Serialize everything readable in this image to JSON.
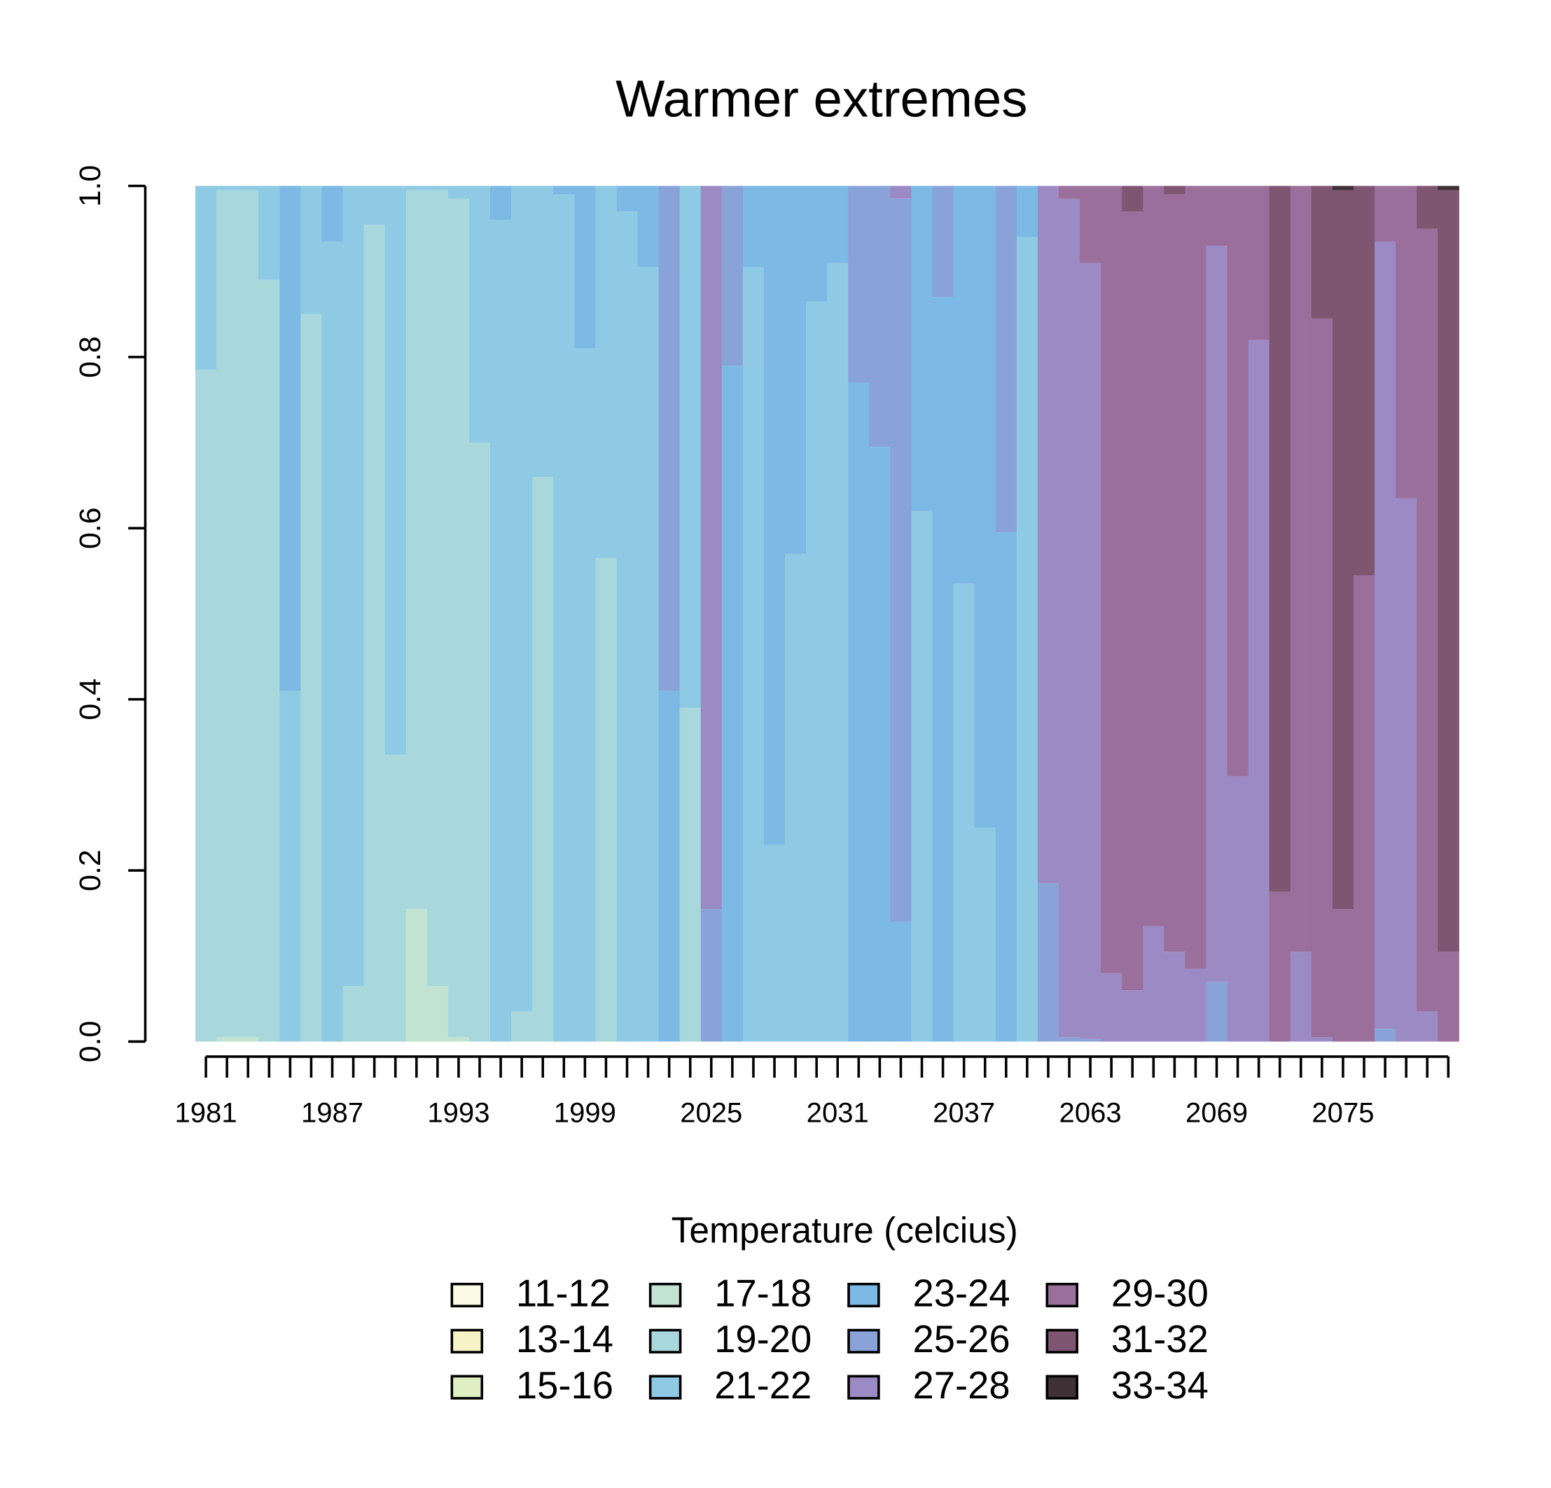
{
  "chart_data": {
    "type": "stacked-bar",
    "title": "Warmer extremes",
    "legend_title": "Temperature (celcius)",
    "categories": [
      "1981",
      null,
      null,
      null,
      null,
      null,
      "1987",
      null,
      null,
      null,
      null,
      null,
      "1993",
      null,
      null,
      null,
      null,
      null,
      "1999",
      null,
      null,
      null,
      null,
      null,
      "2025",
      null,
      null,
      null,
      null,
      null,
      "2031",
      null,
      null,
      null,
      null,
      null,
      "2037",
      null,
      null,
      null,
      null,
      null,
      "2063",
      null,
      null,
      null,
      null,
      null,
      "2069",
      null,
      null,
      null,
      null,
      null,
      "2075",
      null,
      null,
      null,
      null,
      null
    ],
    "ylim": [
      0,
      1
    ],
    "yticks": [
      0,
      0.2,
      0.4,
      0.6,
      0.8,
      1
    ],
    "yticklabels": [
      "0.0",
      "0.2",
      "0.4",
      "0.6",
      "0.8",
      "1.0"
    ],
    "series": [
      {
        "name": "11-12",
        "color": "#fbfae4",
        "values": [
          0,
          0,
          0,
          0,
          0,
          0,
          0,
          0,
          0,
          0,
          0,
          0,
          0,
          0,
          0,
          0,
          0,
          0,
          0,
          0,
          0,
          0,
          0,
          0,
          0,
          0,
          0,
          0,
          0,
          0,
          0,
          0,
          0,
          0,
          0,
          0,
          0,
          0,
          0,
          0,
          0,
          0,
          0,
          0,
          0,
          0,
          0,
          0,
          0,
          0,
          0,
          0,
          0,
          0,
          0,
          0,
          0,
          0,
          0,
          0
        ]
      },
      {
        "name": "13-14",
        "color": "#f6f3c6",
        "values": [
          0,
          0,
          0,
          0,
          0,
          0,
          0,
          0,
          0,
          0,
          0,
          0,
          0,
          0,
          0,
          0,
          0,
          0,
          0,
          0,
          0,
          0,
          0,
          0,
          0,
          0,
          0,
          0,
          0,
          0,
          0,
          0,
          0,
          0,
          0,
          0,
          0,
          0,
          0,
          0,
          0,
          0,
          0,
          0,
          0,
          0,
          0,
          0,
          0,
          0,
          0,
          0,
          0,
          0,
          0,
          0,
          0,
          0,
          0,
          0
        ]
      },
      {
        "name": "15-16",
        "color": "#e0eec4",
        "values": [
          0,
          0,
          0,
          0,
          0,
          0,
          0,
          0,
          0,
          0,
          0,
          0,
          0,
          0,
          0,
          0,
          0,
          0,
          0,
          0,
          0,
          0,
          0,
          0,
          0,
          0,
          0,
          0,
          0,
          0,
          0,
          0,
          0,
          0,
          0,
          0,
          0,
          0,
          0,
          0,
          0,
          0,
          0,
          0,
          0,
          0,
          0,
          0,
          0,
          0,
          0,
          0,
          0,
          0,
          0,
          0,
          0,
          0,
          0,
          0
        ]
      },
      {
        "name": "17-18",
        "color": "#c2e3d2",
        "values": [
          0,
          0.005,
          0.005,
          0,
          0,
          0,
          0,
          0,
          0,
          0,
          0.155,
          0.065,
          0.005,
          0,
          0,
          0,
          0,
          0,
          0,
          0,
          0,
          0,
          0,
          0,
          0,
          0,
          0,
          0,
          0,
          0,
          0,
          0,
          0,
          0,
          0,
          0,
          0,
          0,
          0,
          0,
          0,
          0,
          0,
          0,
          0,
          0,
          0,
          0,
          0,
          0,
          0,
          0,
          0,
          0,
          0,
          0,
          0,
          0,
          0,
          0
        ]
      },
      {
        "name": "19-20",
        "color": "#a9d8dc",
        "values": [
          0.785,
          0.99,
          0.99,
          0.89,
          0,
          0.85,
          0,
          0.065,
          0.955,
          0.335,
          0.84,
          0.93,
          0.98,
          0.7,
          0,
          0.035,
          0.66,
          0,
          0,
          0.565,
          0,
          0,
          0,
          0.39,
          0,
          0,
          0,
          0,
          0,
          0,
          0,
          0,
          0,
          0,
          0,
          0,
          0,
          0,
          0,
          0,
          0,
          0,
          0,
          0,
          0,
          0,
          0,
          0,
          0,
          0,
          0,
          0,
          0,
          0,
          0,
          0,
          0,
          0,
          0,
          0
        ]
      },
      {
        "name": "21-22",
        "color": "#8ecae4",
        "values": [
          0.215,
          0.005,
          0.005,
          0.11,
          0.41,
          0.15,
          0.935,
          0.935,
          0.045,
          0.665,
          0.005,
          0.005,
          0.015,
          0.3,
          0.96,
          0.965,
          0.34,
          0.99,
          0.81,
          0.435,
          0.97,
          0.905,
          0,
          0.61,
          0,
          0,
          0.905,
          0.23,
          0.57,
          0.865,
          0.91,
          0,
          0,
          0,
          0.62,
          0,
          0.535,
          0.25,
          0,
          0.94,
          0,
          0,
          0,
          0,
          0,
          0,
          0,
          0,
          0,
          0,
          0,
          0,
          0,
          0,
          0,
          0,
          0,
          0,
          0,
          0
        ]
      },
      {
        "name": "23-24",
        "color": "#7db9e5",
        "values": [
          0,
          0,
          0,
          0,
          0.59,
          0,
          0.065,
          0,
          0,
          0,
          0,
          0,
          0,
          0,
          0.04,
          0,
          0,
          0.01,
          0.19,
          0,
          0.03,
          0.095,
          0.41,
          0,
          0,
          0.79,
          0.095,
          0.77,
          0.43,
          0.135,
          0.09,
          0.77,
          0.695,
          0.14,
          0.38,
          0.87,
          0.465,
          0.75,
          0.595,
          0.06,
          0,
          0,
          0,
          0,
          0,
          0,
          0,
          0,
          0,
          0,
          0,
          0,
          0,
          0,
          0,
          0,
          0,
          0,
          0,
          0
        ]
      },
      {
        "name": "25-26",
        "color": "#89a3d9",
        "values": [
          0,
          0,
          0,
          0,
          0,
          0,
          0,
          0,
          0,
          0,
          0,
          0,
          0,
          0,
          0,
          0,
          0,
          0,
          0,
          0,
          0,
          0,
          0.59,
          0,
          0.155,
          0.21,
          0,
          0,
          0,
          0,
          0,
          0.23,
          0.305,
          0.845,
          0,
          0.13,
          0,
          0,
          0.405,
          0,
          0.185,
          0.005,
          0.003,
          0,
          0,
          0,
          0,
          0,
          0.07,
          0,
          0,
          0,
          0,
          0,
          0,
          0,
          0.015,
          0,
          0,
          0
        ]
      },
      {
        "name": "27-28",
        "color": "#9c8ac4",
        "values": [
          0,
          0,
          0,
          0,
          0,
          0,
          0,
          0,
          0,
          0,
          0,
          0,
          0,
          0,
          0,
          0,
          0,
          0,
          0,
          0,
          0,
          0,
          0,
          0,
          0.845,
          0,
          0,
          0,
          0,
          0,
          0,
          0,
          0,
          0.015,
          0,
          0,
          0,
          0,
          0,
          0,
          0.815,
          0.98,
          0.907,
          0.08,
          0.06,
          0.135,
          0.105,
          0.085,
          0.86,
          0.31,
          0.82,
          0,
          0.105,
          0.005,
          0,
          0,
          0.92,
          0.635,
          0.035,
          0
        ]
      },
      {
        "name": "29-30",
        "color": "#9a6f9c",
        "values": [
          0,
          0,
          0,
          0,
          0,
          0,
          0,
          0,
          0,
          0,
          0,
          0,
          0,
          0,
          0,
          0,
          0,
          0,
          0,
          0,
          0,
          0,
          0,
          0,
          0,
          0,
          0,
          0,
          0,
          0,
          0,
          0,
          0,
          0,
          0,
          0,
          0,
          0,
          0,
          0,
          0,
          0.015,
          0.09,
          0.92,
          0.91,
          0.865,
          0.885,
          0.915,
          0.07,
          0.69,
          0.18,
          0.175,
          0.895,
          0.84,
          0.155,
          0.545,
          0.065,
          0.365,
          0.915,
          0.105
        ]
      },
      {
        "name": "31-32",
        "color": "#7e5672",
        "values": [
          0,
          0,
          0,
          0,
          0,
          0,
          0,
          0,
          0,
          0,
          0,
          0,
          0,
          0,
          0,
          0,
          0,
          0,
          0,
          0,
          0,
          0,
          0,
          0,
          0,
          0,
          0,
          0,
          0,
          0,
          0,
          0,
          0,
          0,
          0,
          0,
          0,
          0,
          0,
          0,
          0,
          0,
          0,
          0,
          0.03,
          0,
          0.01,
          0,
          0,
          0,
          0,
          0.825,
          0,
          0.155,
          0.84,
          0.455,
          0,
          0,
          0.05,
          0.89
        ]
      },
      {
        "name": "33-34",
        "color": "#3f3136",
        "values": [
          0,
          0,
          0,
          0,
          0,
          0,
          0,
          0,
          0,
          0,
          0,
          0,
          0,
          0,
          0,
          0,
          0,
          0,
          0,
          0,
          0,
          0,
          0,
          0,
          0,
          0,
          0,
          0,
          0,
          0,
          0,
          0,
          0,
          0,
          0,
          0,
          0,
          0,
          0,
          0,
          0,
          0,
          0,
          0,
          0,
          0,
          0,
          0,
          0,
          0,
          0,
          0,
          0,
          0,
          0.005,
          0,
          0,
          0,
          0,
          0.005
        ]
      }
    ]
  }
}
